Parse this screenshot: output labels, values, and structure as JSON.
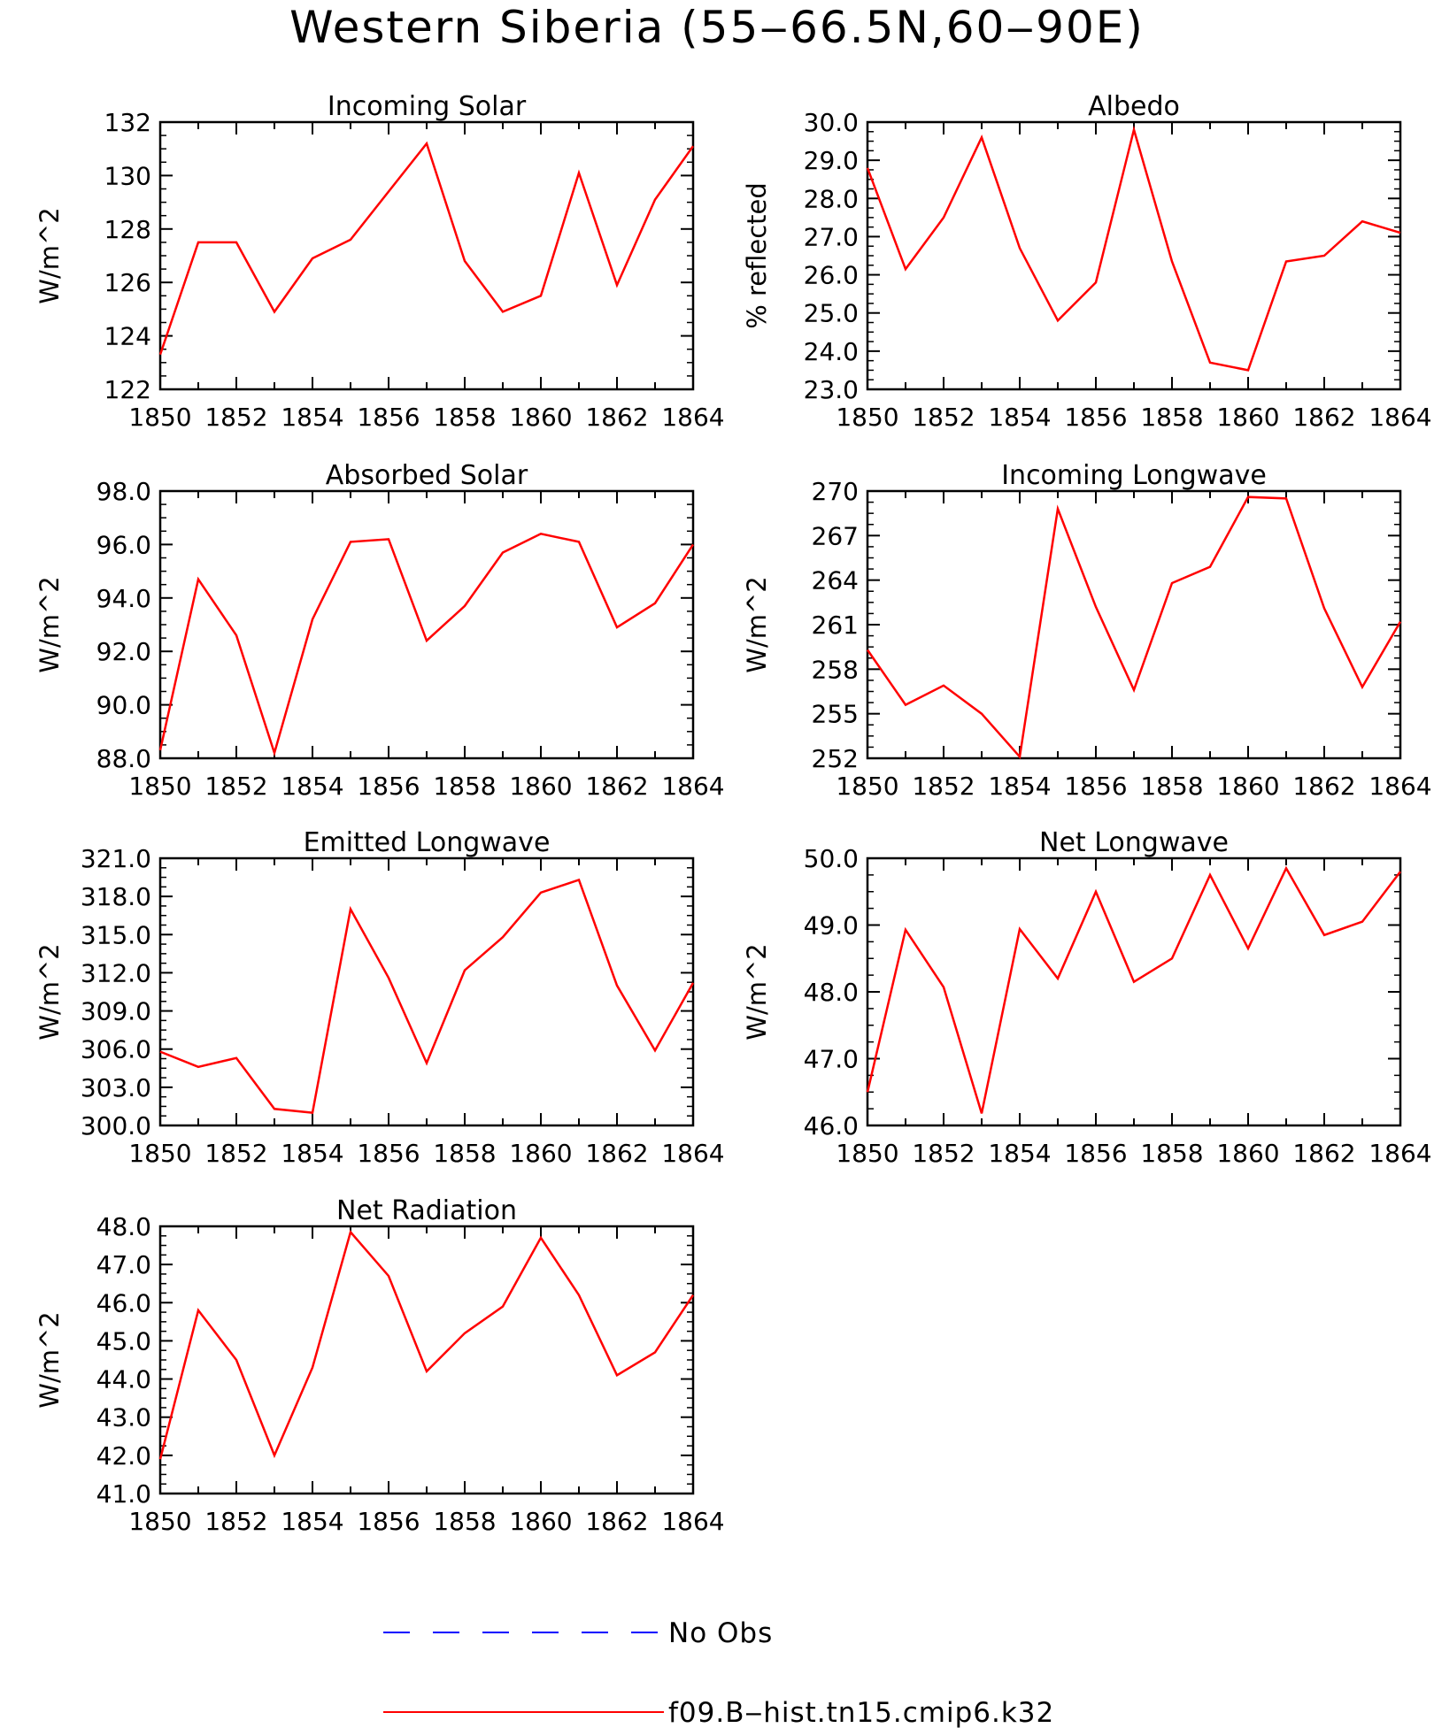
{
  "figure": {
    "title": "Western Siberia (55‒66.5N,60‒90E)"
  },
  "colors": {
    "model_line": "#ff0000",
    "obs_line": "#0000ff",
    "axes": "#000000",
    "background": "#ffffff"
  },
  "legend": {
    "items": [
      {
        "label": "No Obs",
        "style": "dashed",
        "color": "#0000ff"
      },
      {
        "label": "f09.B‒hist.tn15.cmip6.k32",
        "style": "solid",
        "color": "#ff0000"
      }
    ]
  },
  "chart_data": [
    {
      "type": "line",
      "title": "Incoming Solar",
      "xlabel": "",
      "ylabel": "W/m^2",
      "xlim": [
        1850,
        1864
      ],
      "ylim": [
        122,
        132
      ],
      "xticks": [
        1850,
        1852,
        1854,
        1856,
        1858,
        1860,
        1862,
        1864
      ],
      "yticks": [
        122,
        124,
        126,
        128,
        130,
        132
      ],
      "ytick_labels": [
        "122",
        "124",
        "126",
        "128",
        "130",
        "132"
      ],
      "x": [
        1850,
        1851,
        1852,
        1853,
        1854,
        1855,
        1856,
        1857,
        1858,
        1859,
        1860,
        1861,
        1862,
        1863,
        1864
      ],
      "series": [
        {
          "color": "#ff0000",
          "values": [
            123.3,
            127.5,
            127.5,
            124.9,
            126.9,
            127.6,
            129.4,
            131.2,
            126.8,
            124.9,
            125.5,
            130.1,
            125.9,
            129.1,
            131.1
          ]
        }
      ]
    },
    {
      "type": "line",
      "title": "Albedo",
      "xlabel": "",
      "ylabel": "% reflected",
      "xlim": [
        1850,
        1864
      ],
      "ylim": [
        23.0,
        30.0
      ],
      "xticks": [
        1850,
        1852,
        1854,
        1856,
        1858,
        1860,
        1862,
        1864
      ],
      "yticks": [
        23,
        24,
        25,
        26,
        27,
        28,
        29,
        30
      ],
      "ytick_labels": [
        "23.0",
        "24.0",
        "25.0",
        "26.0",
        "27.0",
        "28.0",
        "29.0",
        "30.0"
      ],
      "x": [
        1850,
        1851,
        1852,
        1853,
        1854,
        1855,
        1856,
        1857,
        1858,
        1859,
        1860,
        1861,
        1862,
        1863,
        1864
      ],
      "series": [
        {
          "color": "#ff0000",
          "values": [
            28.8,
            26.15,
            27.5,
            29.6,
            26.7,
            24.8,
            25.8,
            29.8,
            26.35,
            23.7,
            23.5,
            26.35,
            26.5,
            27.4,
            27.1
          ]
        }
      ]
    },
    {
      "type": "line",
      "title": "Absorbed Solar",
      "xlabel": "",
      "ylabel": "W/m^2",
      "xlim": [
        1850,
        1864
      ],
      "ylim": [
        88.0,
        98.0
      ],
      "xticks": [
        1850,
        1852,
        1854,
        1856,
        1858,
        1860,
        1862,
        1864
      ],
      "yticks": [
        88,
        90,
        92,
        94,
        96,
        98
      ],
      "ytick_labels": [
        "88.0",
        "90.0",
        "92.0",
        "94.0",
        "96.0",
        "98.0"
      ],
      "x": [
        1850,
        1851,
        1852,
        1853,
        1854,
        1855,
        1856,
        1857,
        1858,
        1859,
        1860,
        1861,
        1862,
        1863,
        1864
      ],
      "series": [
        {
          "color": "#ff0000",
          "values": [
            88.3,
            94.7,
            92.6,
            88.2,
            93.2,
            96.1,
            96.2,
            92.4,
            93.7,
            95.7,
            96.4,
            96.1,
            92.9,
            93.8,
            96.0
          ]
        }
      ]
    },
    {
      "type": "line",
      "title": "Incoming Longwave",
      "xlabel": "",
      "ylabel": "W/m^2",
      "xlim": [
        1850,
        1864
      ],
      "ylim": [
        252,
        270
      ],
      "xticks": [
        1850,
        1852,
        1854,
        1856,
        1858,
        1860,
        1862,
        1864
      ],
      "yticks": [
        252,
        255,
        258,
        261,
        264,
        267,
        270
      ],
      "ytick_labels": [
        "252",
        "255",
        "258",
        "261",
        "264",
        "267",
        "270"
      ],
      "x": [
        1850,
        1851,
        1852,
        1853,
        1854,
        1855,
        1856,
        1857,
        1858,
        1859,
        1860,
        1861,
        1862,
        1863,
        1864
      ],
      "series": [
        {
          "color": "#ff0000",
          "values": [
            259.3,
            255.6,
            256.9,
            255.0,
            252.1,
            268.8,
            262.2,
            256.6,
            263.8,
            264.9,
            269.6,
            269.5,
            262.1,
            256.8,
            261.2
          ]
        }
      ]
    },
    {
      "type": "line",
      "title": "Emitted Longwave",
      "xlabel": "",
      "ylabel": "W/m^2",
      "xlim": [
        1850,
        1864
      ],
      "ylim": [
        300.0,
        321.0
      ],
      "xticks": [
        1850,
        1852,
        1854,
        1856,
        1858,
        1860,
        1862,
        1864
      ],
      "yticks": [
        300,
        303,
        306,
        309,
        312,
        315,
        318,
        321
      ],
      "ytick_labels": [
        "300.0",
        "303.0",
        "306.0",
        "309.0",
        "312.0",
        "315.0",
        "318.0",
        "321.0"
      ],
      "x": [
        1850,
        1851,
        1852,
        1853,
        1854,
        1855,
        1856,
        1857,
        1858,
        1859,
        1860,
        1861,
        1862,
        1863,
        1864
      ],
      "series": [
        {
          "color": "#ff0000",
          "values": [
            305.8,
            304.6,
            305.3,
            301.3,
            301.0,
            317.0,
            311.6,
            304.9,
            312.2,
            314.8,
            318.3,
            319.3,
            311.0,
            305.9,
            311.2
          ]
        }
      ]
    },
    {
      "type": "line",
      "title": "Net Longwave",
      "xlabel": "",
      "ylabel": "W/m^2",
      "xlim": [
        1850,
        1864
      ],
      "ylim": [
        46.0,
        50.0
      ],
      "xticks": [
        1850,
        1852,
        1854,
        1856,
        1858,
        1860,
        1862,
        1864
      ],
      "yticks": [
        46,
        47,
        48,
        49,
        50
      ],
      "ytick_labels": [
        "46.0",
        "47.0",
        "48.0",
        "49.0",
        "50.0"
      ],
      "x": [
        1850,
        1851,
        1852,
        1853,
        1854,
        1855,
        1856,
        1857,
        1858,
        1859,
        1860,
        1861,
        1862,
        1863,
        1864
      ],
      "series": [
        {
          "color": "#ff0000",
          "values": [
            46.5,
            48.93,
            48.07,
            46.18,
            48.94,
            48.2,
            49.5,
            48.15,
            48.5,
            49.75,
            48.65,
            49.85,
            48.85,
            49.05,
            49.8
          ]
        }
      ]
    },
    {
      "type": "line",
      "title": "Net Radiation",
      "xlabel": "",
      "ylabel": "W/m^2",
      "xlim": [
        1850,
        1864
      ],
      "ylim": [
        41.0,
        48.0
      ],
      "xticks": [
        1850,
        1852,
        1854,
        1856,
        1858,
        1860,
        1862,
        1864
      ],
      "yticks": [
        41,
        42,
        43,
        44,
        45,
        46,
        47,
        48
      ],
      "ytick_labels": [
        "41.0",
        "42.0",
        "43.0",
        "44.0",
        "45.0",
        "46.0",
        "47.0",
        "48.0"
      ],
      "x": [
        1850,
        1851,
        1852,
        1853,
        1854,
        1855,
        1856,
        1857,
        1858,
        1859,
        1860,
        1861,
        1862,
        1863,
        1864
      ],
      "series": [
        {
          "color": "#ff0000",
          "values": [
            41.9,
            45.8,
            44.5,
            42.0,
            44.3,
            47.85,
            46.7,
            44.2,
            45.2,
            45.9,
            47.7,
            46.2,
            44.1,
            44.7,
            46.2
          ]
        }
      ]
    }
  ]
}
